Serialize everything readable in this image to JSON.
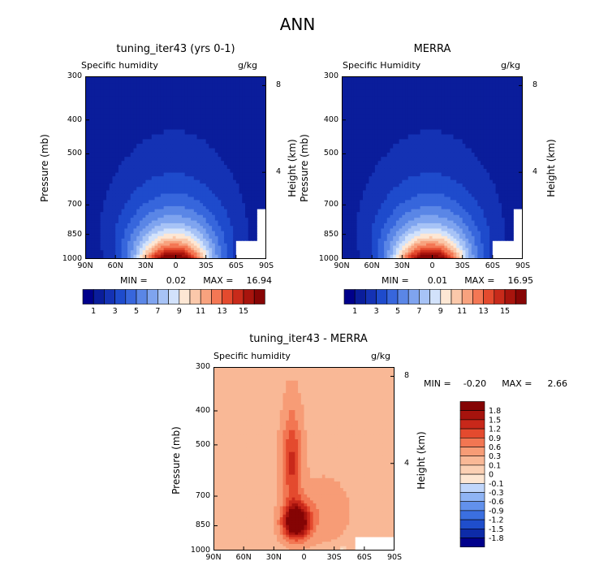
{
  "figure": {
    "title": "ANN"
  },
  "colors": {
    "seq": [
      "#00008b",
      "#0a1d9b",
      "#1432b4",
      "#1e4bcc",
      "#3766dc",
      "#5a86e6",
      "#7fa4ef",
      "#a7c3f6",
      "#d2e2fb",
      "#fde7d4",
      "#fbc8aa",
      "#f8a27e",
      "#f47754",
      "#e44a2e",
      "#c82a1a",
      "#a8140d",
      "#870505"
    ],
    "diff": [
      "#00008b",
      "#0d2ba8",
      "#1f4ecb",
      "#3b6fe0",
      "#6291ec",
      "#8fb4f4",
      "#c0d6fb",
      "#fde6d2",
      "#fbd0b4",
      "#f9b896",
      "#f79c76",
      "#f27652",
      "#e44a2e",
      "#c8281a",
      "#a6130d",
      "#850404"
    ]
  },
  "chart_data": [
    {
      "type": "heatmap",
      "panel": "model",
      "title": "tuning_iter43 (yrs 0-1)",
      "left_label": "Specific humidity",
      "right_label": "g/kg",
      "ylabel": "Pressure (mb)",
      "ylabel_right": "Height (km)",
      "x_ticks": [
        "90N",
        "60N",
        "30N",
        "0",
        "30S",
        "60S",
        "90S"
      ],
      "y_ticks": [
        "300",
        "400",
        "500",
        "700",
        "850",
        "1000"
      ],
      "y_ticks_right": [
        "8",
        "4"
      ],
      "xlim": [
        90,
        -90
      ],
      "ylim": [
        1000,
        300
      ],
      "min_label": "MIN =",
      "min_value": "0.02",
      "max_label": "MAX =",
      "max_value": "16.94",
      "min": 0.02,
      "max": 16.94,
      "peak_latitude": 0,
      "colorbar_labels": [
        "1",
        "3",
        "5",
        "7",
        "9",
        "11",
        "13",
        "15"
      ],
      "colorbar_levels": [
        0,
        1,
        2,
        3,
        4,
        5,
        6,
        7,
        8,
        9,
        10,
        11,
        12,
        13,
        14,
        15,
        16
      ]
    },
    {
      "type": "heatmap",
      "panel": "obs",
      "title": "MERRA",
      "left_label": "Specific Humidity",
      "right_label": "g/kg",
      "ylabel": "Pressure (mb)",
      "ylabel_right": "Height (km)",
      "x_ticks": [
        "90N",
        "60N",
        "30N",
        "0",
        "30S",
        "60S",
        "90S"
      ],
      "y_ticks": [
        "300",
        "400",
        "500",
        "700",
        "850",
        "1000"
      ],
      "y_ticks_right": [
        "8",
        "4"
      ],
      "xlim": [
        90,
        -90
      ],
      "ylim": [
        1000,
        300
      ],
      "min_label": "MIN =",
      "min_value": "0.01",
      "max_label": "MAX =",
      "max_value": "16.95",
      "min": 0.01,
      "max": 16.95,
      "peak_latitude": 0,
      "colorbar_labels": [
        "1",
        "3",
        "5",
        "7",
        "9",
        "11",
        "13",
        "15"
      ],
      "colorbar_levels": [
        0,
        1,
        2,
        3,
        4,
        5,
        6,
        7,
        8,
        9,
        10,
        11,
        12,
        13,
        14,
        15,
        16
      ]
    },
    {
      "type": "heatmap",
      "panel": "difference",
      "title": "tuning_iter43 - MERRA",
      "left_label": "Specific humidity",
      "right_label": "g/kg",
      "ylabel": "Pressure (mb)",
      "ylabel_right": "Height (km)",
      "x_ticks": [
        "90N",
        "60N",
        "30N",
        "0",
        "30S",
        "60S",
        "90S"
      ],
      "y_ticks": [
        "300",
        "400",
        "500",
        "700",
        "850",
        "1000"
      ],
      "y_ticks_right": [
        "8",
        "4"
      ],
      "xlim": [
        90,
        -90
      ],
      "ylim": [
        1000,
        300
      ],
      "min_label": "MIN =",
      "min_value": "-0.20",
      "max_label": "MAX =",
      "max_value": "2.66",
      "min": -0.2,
      "max": 2.66,
      "colorbar_labels": [
        "1.8",
        "1.5",
        "1.2",
        "0.9",
        "0.6",
        "0.3",
        "0.1",
        "0",
        "-0.1",
        "-0.3",
        "-0.6",
        "-0.9",
        "-1.2",
        "-1.5",
        "-1.8"
      ],
      "colorbar_levels": [
        -1.8,
        -1.5,
        -1.2,
        -0.9,
        -0.6,
        -0.3,
        -0.1,
        0,
        0.1,
        0.3,
        0.6,
        0.9,
        1.2,
        1.5,
        1.8
      ]
    }
  ]
}
